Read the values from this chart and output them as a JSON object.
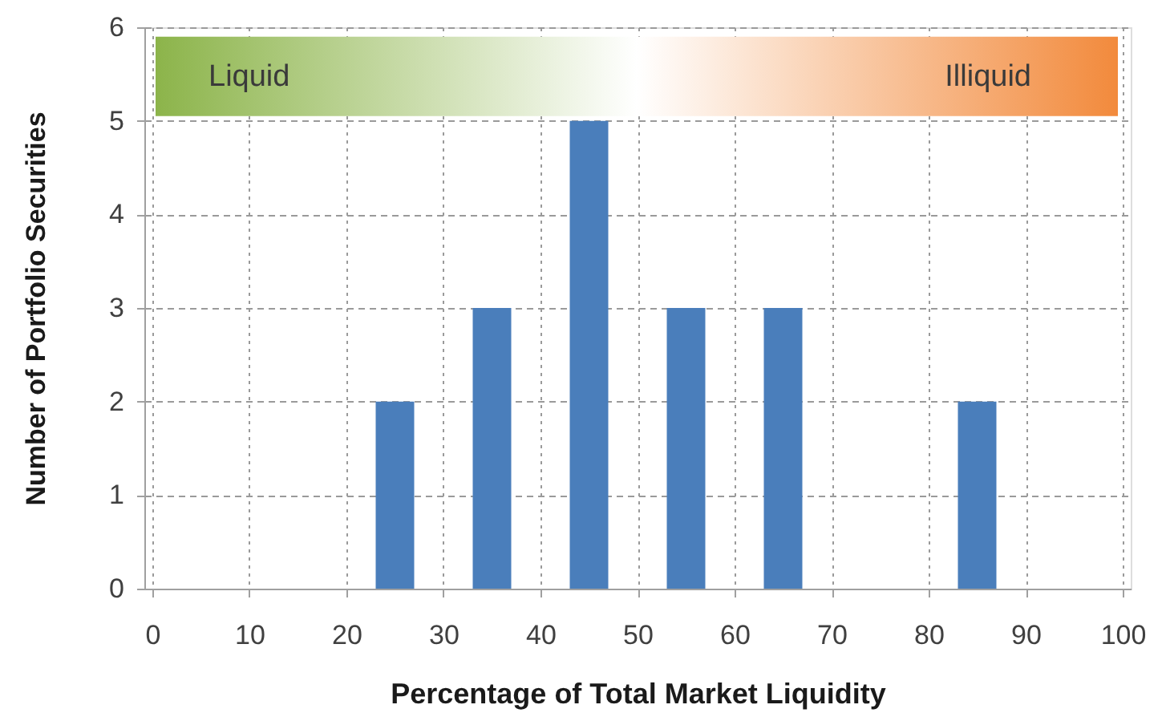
{
  "chart_data": {
    "type": "bar",
    "xlabel": "Percentage of Total Market Liquidity",
    "ylabel": "Number of Portfolio Securities",
    "x": [
      25,
      35,
      45,
      55,
      65,
      85
    ],
    "values": [
      2,
      3,
      5,
      3,
      3,
      2
    ],
    "color": "#4a7ebb",
    "xlim": [
      0,
      100
    ],
    "xticks": [
      0,
      10,
      20,
      30,
      40,
      50,
      60,
      70,
      80,
      90,
      100
    ],
    "ylim": [
      0,
      6
    ],
    "yticks": [
      0,
      1,
      2,
      3,
      4,
      5,
      6
    ],
    "grid": true,
    "bands": [
      {
        "axis": "y",
        "from": 5.05,
        "to": 5.9,
        "color": [
          "#8cb44a",
          "#ffffff",
          "#f28a3c"
        ]
      }
    ],
    "annotations": [
      "Liquid",
      "Illiquid"
    ]
  }
}
